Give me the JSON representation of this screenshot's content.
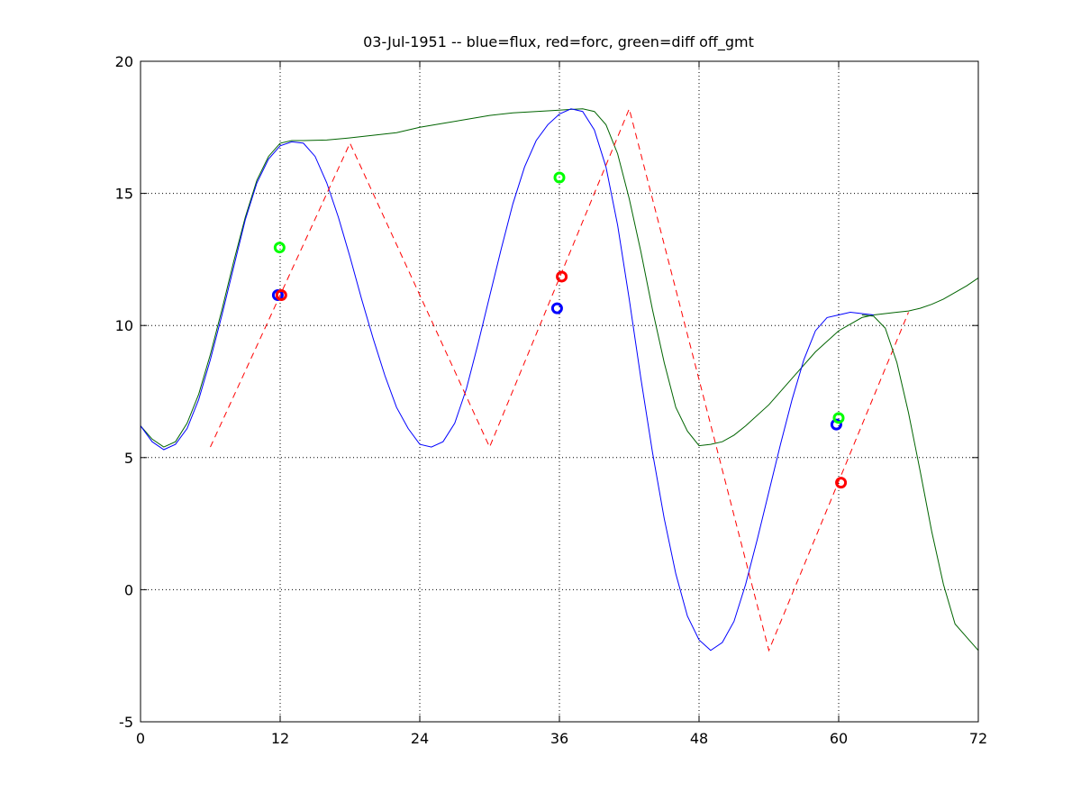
{
  "chart_data": {
    "type": "line",
    "title": "03-Jul-1951 -- blue=flux, red=forc, green=diff off_gmt",
    "xlabel": "",
    "ylabel": "",
    "xlim": [
      0,
      72
    ],
    "ylim": [
      -5,
      20
    ],
    "xticks": [
      0,
      12,
      24,
      36,
      48,
      60,
      72
    ],
    "yticks": [
      -5,
      0,
      5,
      10,
      15,
      20
    ],
    "grid": true,
    "vertical_grid_at": [
      12,
      24,
      36,
      48,
      60
    ],
    "horizontal_grid_at": [
      0,
      5,
      10,
      15
    ],
    "series": [
      {
        "color": "#0000ff",
        "style": "solid",
        "x": [
          0,
          1,
          2,
          3,
          4,
          5,
          6,
          7,
          8,
          9,
          10,
          11,
          12,
          13,
          14,
          15,
          16,
          17,
          18,
          19,
          20,
          21,
          22,
          23,
          24,
          25,
          26,
          27,
          28,
          29,
          30,
          31,
          32,
          33,
          34,
          35,
          36,
          37,
          38,
          39,
          40,
          41,
          42,
          43,
          44,
          45,
          46,
          47,
          48,
          49,
          50,
          51,
          52,
          53,
          54,
          55,
          56,
          57,
          58,
          59,
          60,
          61,
          62,
          63
        ],
        "y": [
          6.2,
          5.6,
          5.3,
          5.5,
          6.1,
          7.2,
          8.7,
          10.4,
          12.2,
          14.0,
          15.4,
          16.3,
          16.8,
          16.95,
          16.9,
          16.4,
          15.4,
          14.1,
          12.6,
          11.0,
          9.5,
          8.1,
          6.9,
          6.1,
          5.5,
          5.4,
          5.6,
          6.3,
          7.6,
          9.3,
          11.1,
          12.9,
          14.6,
          16.0,
          17.0,
          17.6,
          18.0,
          18.2,
          18.1,
          17.4,
          16.0,
          13.8,
          11.0,
          8.0,
          5.2,
          2.7,
          0.6,
          -1.0,
          -1.9,
          -2.3,
          -2.0,
          -1.2,
          0.2,
          1.9,
          3.7,
          5.5,
          7.2,
          8.7,
          9.8,
          10.3,
          10.4,
          10.5,
          10.45,
          10.4
        ]
      },
      {
        "color": "#006400",
        "style": "solid",
        "x": [
          0,
          1,
          2,
          3,
          4,
          5,
          6,
          7,
          8,
          9,
          10,
          11,
          12,
          13,
          14,
          16,
          18,
          20,
          22,
          24,
          26,
          28,
          30,
          32,
          34,
          36,
          37,
          38,
          39,
          40,
          41,
          42,
          43,
          44,
          45,
          46,
          47,
          48,
          49,
          50,
          51,
          52,
          54,
          56,
          58,
          60,
          62,
          63,
          64,
          65,
          66,
          67,
          68,
          69,
          70,
          71,
          72
        ],
        "y": [
          6.2,
          5.7,
          5.4,
          5.6,
          6.3,
          7.4,
          8.9,
          10.6,
          12.4,
          14.1,
          15.5,
          16.4,
          16.9,
          17.0,
          17.0,
          17.02,
          17.1,
          17.2,
          17.3,
          17.5,
          17.65,
          17.8,
          17.95,
          18.05,
          18.1,
          18.15,
          18.18,
          18.2,
          18.1,
          17.6,
          16.5,
          14.8,
          12.8,
          10.6,
          8.6,
          6.9,
          6.0,
          5.45,
          5.5,
          5.6,
          5.85,
          6.2,
          7.0,
          8.0,
          9.0,
          9.8,
          10.3,
          10.4,
          10.45,
          10.5,
          10.55,
          10.65,
          10.8,
          11.0,
          11.25,
          11.5,
          11.8
        ]
      },
      {
        "color": "#ff0000",
        "style": "dashed",
        "x": [
          6,
          18,
          30,
          42,
          54,
          66
        ],
        "y": [
          5.4,
          16.9,
          5.4,
          18.2,
          -2.3,
          10.5
        ]
      }
    ],
    "green_right_segment": {
      "color": "#006400",
      "x": [
        62,
        63,
        64,
        65,
        66,
        67,
        68,
        69,
        70,
        71,
        72
      ],
      "y": [
        10.4,
        10.35,
        9.9,
        8.6,
        6.7,
        4.5,
        2.2,
        0.2,
        -1.3,
        -1.8,
        -2.3
      ]
    },
    "markers": [
      {
        "color": "#0000ff",
        "x": 11.8,
        "y": 11.15
      },
      {
        "color": "#ff0000",
        "x": 12.1,
        "y": 11.15
      },
      {
        "color": "#00ff00",
        "x": 11.95,
        "y": 12.95
      },
      {
        "color": "#0000ff",
        "x": 35.8,
        "y": 10.65
      },
      {
        "color": "#ff0000",
        "x": 36.2,
        "y": 11.85
      },
      {
        "color": "#00ff00",
        "x": 36.0,
        "y": 15.6
      },
      {
        "color": "#0000ff",
        "x": 59.8,
        "y": 6.25
      },
      {
        "color": "#ff0000",
        "x": 60.2,
        "y": 4.05
      },
      {
        "color": "#00ff00",
        "x": 60.0,
        "y": 6.5
      }
    ]
  }
}
